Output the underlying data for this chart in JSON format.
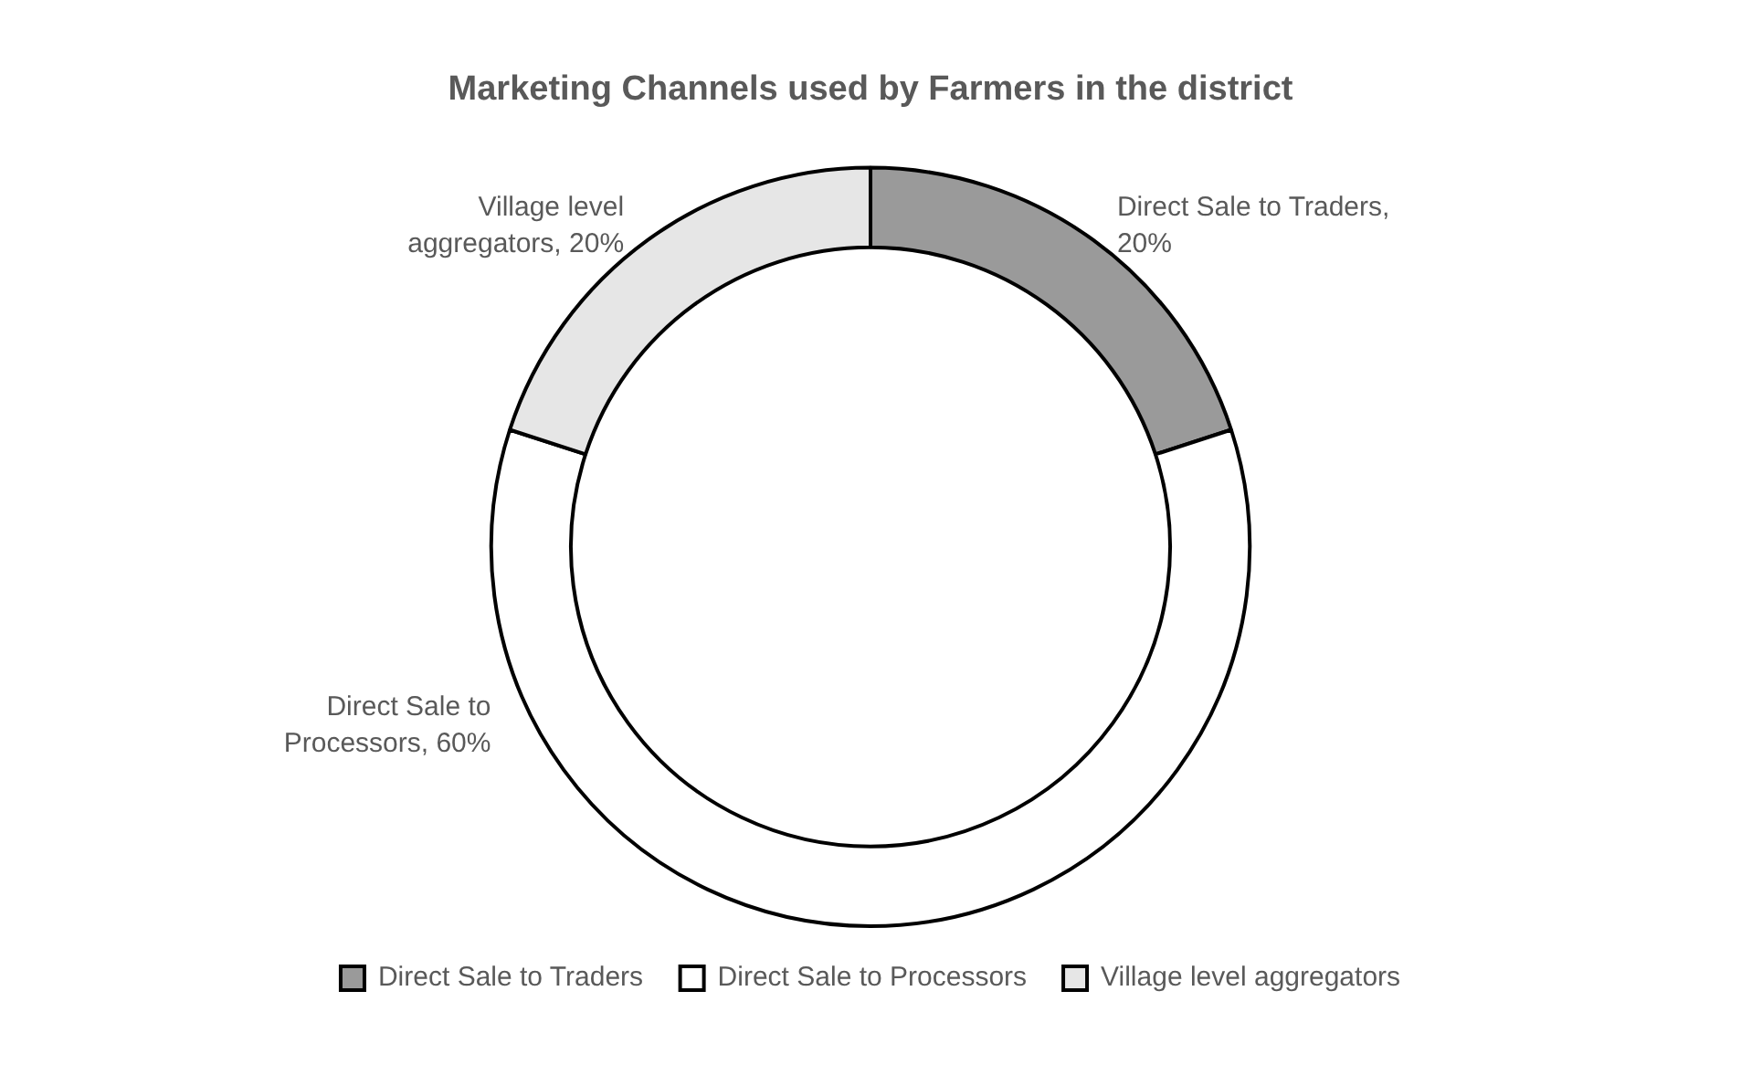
{
  "chart_data": {
    "type": "donut",
    "title": "Marketing Channels used by Farmers in the district",
    "categories": [
      "Direct Sale to Traders",
      "Direct Sale to Processors",
      "Village level aggregators"
    ],
    "values": [
      20,
      60,
      20
    ],
    "value_labels": [
      "Direct Sale to Traders, 20%",
      "Direct Sale to Processors, 60%",
      "Village level aggregators, 20%"
    ],
    "colors": [
      "#9a9a9a",
      "#ffffff",
      "#e6e6e6"
    ],
    "legend": "bottom"
  }
}
